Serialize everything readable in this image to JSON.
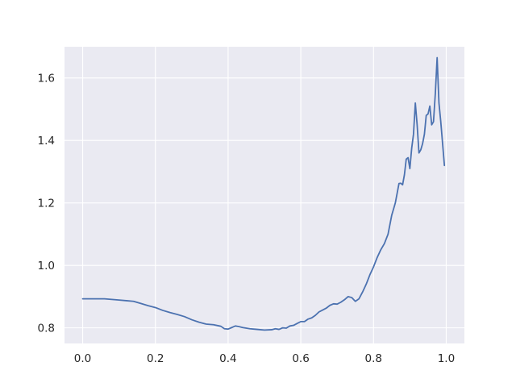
{
  "chart_data": {
    "type": "line",
    "title": "",
    "xlabel": "",
    "ylabel": "",
    "xlim": [
      -0.05,
      1.05
    ],
    "ylim": [
      0.75,
      1.7
    ],
    "grid": true,
    "background": "#eaeaf2",
    "x_ticks": [
      0.0,
      0.2,
      0.4,
      0.6,
      0.8,
      1.0
    ],
    "x_tick_labels": [
      "0.0",
      "0.2",
      "0.4",
      "0.6",
      "0.8",
      "1.0"
    ],
    "y_ticks": [
      0.8,
      1.0,
      1.2,
      1.4,
      1.6
    ],
    "y_tick_labels": [
      "0.8",
      "1.0",
      "1.2",
      "1.4",
      "1.6"
    ],
    "series": [
      {
        "color": "#4c72b0",
        "x": [
          0.0,
          0.02,
          0.04,
          0.06,
          0.08,
          0.1,
          0.12,
          0.14,
          0.16,
          0.18,
          0.2,
          0.22,
          0.24,
          0.26,
          0.28,
          0.3,
          0.32,
          0.34,
          0.36,
          0.38,
          0.39,
          0.4,
          0.41,
          0.42,
          0.43,
          0.44,
          0.45,
          0.46,
          0.48,
          0.5,
          0.52,
          0.53,
          0.54,
          0.55,
          0.56,
          0.57,
          0.58,
          0.59,
          0.6,
          0.61,
          0.62,
          0.63,
          0.64,
          0.65,
          0.66,
          0.67,
          0.68,
          0.69,
          0.7,
          0.71,
          0.72,
          0.73,
          0.74,
          0.75,
          0.76,
          0.77,
          0.78,
          0.79,
          0.8,
          0.81,
          0.82,
          0.83,
          0.84,
          0.85,
          0.86,
          0.87,
          0.875,
          0.88,
          0.885,
          0.89,
          0.895,
          0.9,
          0.905,
          0.91,
          0.915,
          0.92,
          0.925,
          0.93,
          0.935,
          0.94,
          0.945,
          0.95,
          0.955,
          0.96,
          0.965,
          0.97,
          0.975,
          0.98,
          0.985,
          0.99,
          0.995
        ],
        "y": [
          0.893,
          0.893,
          0.893,
          0.893,
          0.891,
          0.889,
          0.887,
          0.885,
          0.878,
          0.871,
          0.865,
          0.856,
          0.849,
          0.843,
          0.836,
          0.826,
          0.818,
          0.812,
          0.81,
          0.805,
          0.797,
          0.796,
          0.801,
          0.806,
          0.804,
          0.801,
          0.799,
          0.797,
          0.795,
          0.793,
          0.794,
          0.797,
          0.795,
          0.8,
          0.799,
          0.806,
          0.808,
          0.814,
          0.82,
          0.82,
          0.828,
          0.832,
          0.84,
          0.851,
          0.857,
          0.863,
          0.872,
          0.877,
          0.876,
          0.882,
          0.89,
          0.9,
          0.897,
          0.885,
          0.893,
          0.915,
          0.94,
          0.97,
          0.995,
          1.025,
          1.05,
          1.07,
          1.1,
          1.16,
          1.2,
          1.262,
          1.263,
          1.258,
          1.29,
          1.34,
          1.345,
          1.31,
          1.375,
          1.42,
          1.52,
          1.45,
          1.36,
          1.37,
          1.39,
          1.42,
          1.48,
          1.485,
          1.51,
          1.45,
          1.46,
          1.55,
          1.665,
          1.52,
          1.46,
          1.39,
          1.32
        ]
      }
    ]
  }
}
